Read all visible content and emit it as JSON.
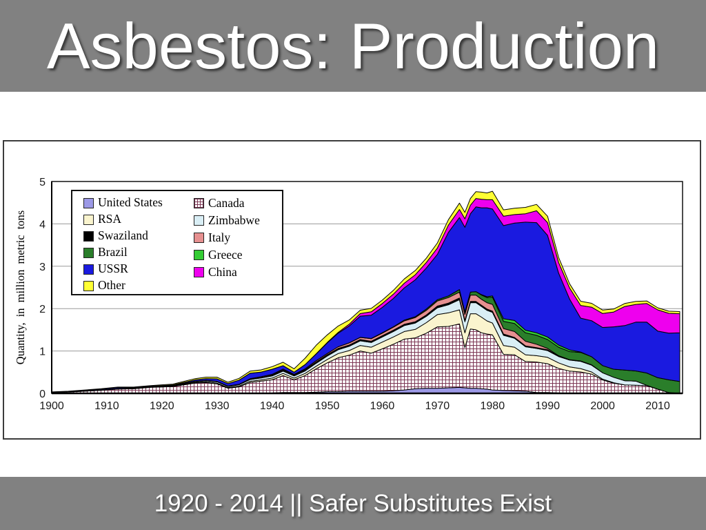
{
  "slide": {
    "title": "Asbestos: Production",
    "footer": "1920 - 2014 || Safer Substitutes Exist",
    "bar_color": "#818181",
    "title_text_color": "#ffffff"
  },
  "chart_data": {
    "type": "area",
    "stacked": true,
    "title": "",
    "xlabel": "",
    "ylabel": "Quantity, in million metric tons",
    "xlim": [
      1900,
      2014.5
    ],
    "ylim": [
      0,
      5
    ],
    "x_ticks": [
      1900,
      1910,
      1920,
      1930,
      1940,
      1950,
      1960,
      1970,
      1980,
      1990,
      2000,
      2010
    ],
    "y_ticks": [
      0,
      1,
      2,
      3,
      4,
      5
    ],
    "grid": true,
    "gridline_color": "#9a9a9a",
    "legend_position": "top-left",
    "legend_columns": [
      [
        "us",
        "rsa",
        "swaziland",
        "brazil",
        "ussr",
        "other"
      ],
      [
        "canada",
        "zimbabwe",
        "italy",
        "greece",
        "china"
      ]
    ],
    "years": [
      1900,
      1903,
      1906,
      1909,
      1912,
      1915,
      1918,
      1920,
      1922,
      1924,
      1926,
      1928,
      1930,
      1932,
      1934,
      1936,
      1938,
      1940,
      1942,
      1944,
      1946,
      1948,
      1950,
      1952,
      1954,
      1956,
      1958,
      1960,
      1962,
      1964,
      1966,
      1968,
      1970,
      1972,
      1974,
      1975,
      1976,
      1977,
      1978,
      1979,
      1980,
      1982,
      1984,
      1986,
      1988,
      1990,
      1992,
      1994,
      1996,
      1998,
      2000,
      2002,
      2004,
      2006,
      2008,
      2010,
      2012,
      2014
    ],
    "units": "million metric tons",
    "series": [
      {
        "key": "us",
        "label": "United States",
        "color": "#9C99E6",
        "values": [
          0.001,
          0.001,
          0.001,
          0.001,
          0.001,
          0.001,
          0.002,
          0.002,
          0.002,
          0.002,
          0.002,
          0.003,
          0.003,
          0.002,
          0.003,
          0.005,
          0.008,
          0.01,
          0.02,
          0.02,
          0.02,
          0.03,
          0.04,
          0.04,
          0.05,
          0.05,
          0.05,
          0.05,
          0.06,
          0.08,
          0.11,
          0.12,
          0.12,
          0.13,
          0.14,
          0.13,
          0.12,
          0.12,
          0.11,
          0.1,
          0.08,
          0.07,
          0.06,
          0.05,
          0.02,
          0.02,
          0.01,
          0.005,
          0.005,
          0.005,
          0.005,
          0,
          0,
          0,
          0,
          0,
          0,
          0
        ]
      },
      {
        "key": "canada",
        "label": "Canada",
        "color": "#FFFFFF",
        "pattern": "grid",
        "pattern_color": "#7B3553",
        "values": [
          0.02,
          0.03,
          0.05,
          0.07,
          0.1,
          0.11,
          0.14,
          0.15,
          0.16,
          0.2,
          0.24,
          0.25,
          0.22,
          0.12,
          0.15,
          0.25,
          0.28,
          0.31,
          0.4,
          0.3,
          0.4,
          0.55,
          0.68,
          0.8,
          0.85,
          0.95,
          0.9,
          1.0,
          1.1,
          1.2,
          1.2,
          1.3,
          1.45,
          1.45,
          1.5,
          0.95,
          1.4,
          1.38,
          1.32,
          1.3,
          1.3,
          0.85,
          0.85,
          0.7,
          0.72,
          0.68,
          0.58,
          0.52,
          0.5,
          0.45,
          0.31,
          0.24,
          0.2,
          0.19,
          0.18,
          0.1,
          0.02,
          0
        ]
      },
      {
        "key": "rsa",
        "label": "RSA",
        "color": "#FAF4CE",
        "values": [
          0.002,
          0.003,
          0.004,
          0.005,
          0.006,
          0.007,
          0.008,
          0.01,
          0.01,
          0.012,
          0.015,
          0.02,
          0.02,
          0.015,
          0.02,
          0.03,
          0.03,
          0.04,
          0.05,
          0.04,
          0.05,
          0.06,
          0.08,
          0.1,
          0.11,
          0.13,
          0.14,
          0.16,
          0.17,
          0.18,
          0.2,
          0.25,
          0.29,
          0.32,
          0.33,
          0.35,
          0.36,
          0.38,
          0.37,
          0.31,
          0.28,
          0.21,
          0.18,
          0.16,
          0.15,
          0.15,
          0.13,
          0.1,
          0.08,
          0.05,
          0.02,
          0.01,
          0,
          0,
          0,
          0,
          0,
          0
        ]
      },
      {
        "key": "zimbabwe",
        "label": "Zimbabwe",
        "color": "#D9EEF5",
        "values": [
          0.001,
          0.001,
          0.002,
          0.003,
          0.004,
          0.005,
          0.006,
          0.01,
          0.012,
          0.015,
          0.02,
          0.025,
          0.03,
          0.025,
          0.03,
          0.04,
          0.045,
          0.05,
          0.055,
          0.05,
          0.06,
          0.07,
          0.08,
          0.09,
          0.1,
          0.11,
          0.11,
          0.12,
          0.13,
          0.14,
          0.15,
          0.15,
          0.16,
          0.19,
          0.24,
          0.26,
          0.26,
          0.26,
          0.25,
          0.25,
          0.25,
          0.24,
          0.21,
          0.19,
          0.17,
          0.16,
          0.15,
          0.16,
          0.17,
          0.16,
          0.15,
          0.13,
          0.1,
          0.1,
          0.01,
          0,
          0,
          0
        ]
      },
      {
        "key": "swaziland",
        "label": "Swaziland",
        "color": "#000000",
        "values": [
          0,
          0,
          0,
          0,
          0,
          0,
          0,
          0,
          0,
          0,
          0,
          0,
          0,
          0,
          0,
          0.005,
          0.01,
          0.02,
          0.03,
          0.03,
          0.03,
          0.03,
          0.03,
          0.03,
          0.03,
          0.03,
          0.03,
          0.03,
          0.03,
          0.03,
          0.03,
          0.03,
          0.04,
          0.04,
          0.04,
          0.03,
          0.03,
          0.03,
          0.03,
          0.03,
          0.03,
          0.03,
          0.02,
          0.02,
          0.02,
          0.02,
          0.01,
          0.01,
          0.01,
          0.01,
          0,
          0,
          0,
          0,
          0,
          0,
          0,
          0
        ]
      },
      {
        "key": "italy",
        "label": "Italy",
        "color": "#E69090",
        "values": [
          0,
          0,
          0,
          0,
          0.001,
          0.001,
          0.002,
          0.005,
          0.005,
          0.01,
          0.01,
          0.01,
          0.01,
          0.01,
          0.01,
          0.015,
          0.02,
          0.02,
          0.02,
          0.01,
          0.02,
          0.03,
          0.03,
          0.04,
          0.05,
          0.05,
          0.06,
          0.06,
          0.07,
          0.08,
          0.1,
          0.11,
          0.12,
          0.13,
          0.14,
          0.14,
          0.15,
          0.15,
          0.14,
          0.15,
          0.16,
          0.13,
          0.14,
          0.11,
          0.08,
          0.03,
          0.01,
          0,
          0,
          0,
          0,
          0,
          0,
          0,
          0,
          0,
          0,
          0
        ]
      },
      {
        "key": "brazil",
        "label": "Brazil",
        "color": "#2A7E2A",
        "values": [
          0,
          0,
          0,
          0,
          0,
          0,
          0,
          0,
          0,
          0,
          0,
          0,
          0,
          0,
          0,
          0,
          0,
          0,
          0,
          0,
          0,
          0,
          0,
          0,
          0.002,
          0.003,
          0.005,
          0.01,
          0.01,
          0.02,
          0.02,
          0.03,
          0.03,
          0.04,
          0.06,
          0.06,
          0.07,
          0.08,
          0.1,
          0.12,
          0.17,
          0.17,
          0.19,
          0.2,
          0.21,
          0.21,
          0.2,
          0.19,
          0.2,
          0.19,
          0.17,
          0.19,
          0.25,
          0.24,
          0.29,
          0.27,
          0.3,
          0.28
        ]
      },
      {
        "key": "greece",
        "label": "Greece",
        "color": "#33CC33",
        "values": [
          0,
          0,
          0,
          0,
          0,
          0,
          0,
          0,
          0,
          0,
          0,
          0,
          0,
          0,
          0,
          0,
          0,
          0,
          0,
          0,
          0,
          0,
          0,
          0,
          0,
          0,
          0,
          0,
          0,
          0,
          0,
          0,
          0,
          0,
          0,
          0,
          0,
          0,
          0.01,
          0.02,
          0.03,
          0.06,
          0.07,
          0.06,
          0.06,
          0.06,
          0.05,
          0.04,
          0.01,
          0,
          0,
          0,
          0,
          0,
          0,
          0,
          0,
          0
        ]
      },
      {
        "key": "ussr",
        "label": "USSR",
        "color": "#1A1AE0",
        "values": [
          0.005,
          0.01,
          0.015,
          0.02,
          0.025,
          0.015,
          0.01,
          0.005,
          0.01,
          0.02,
          0.03,
          0.04,
          0.06,
          0.06,
          0.1,
          0.13,
          0.11,
          0.12,
          0.08,
          0.05,
          0.1,
          0.16,
          0.25,
          0.32,
          0.4,
          0.5,
          0.55,
          0.6,
          0.67,
          0.76,
          0.87,
          0.97,
          1.07,
          1.5,
          1.7,
          2.0,
          1.85,
          2.0,
          2.05,
          2.1,
          2.05,
          2.2,
          2.3,
          2.55,
          2.6,
          2.4,
          1.7,
          1.2,
          0.8,
          0.85,
          0.9,
          1.0,
          1.05,
          1.15,
          1.2,
          1.1,
          1.1,
          1.15
        ]
      },
      {
        "key": "china",
        "label": "China",
        "color": "#EE00EE",
        "values": [
          0,
          0,
          0,
          0,
          0,
          0,
          0,
          0,
          0,
          0,
          0,
          0,
          0,
          0,
          0,
          0,
          0,
          0,
          0,
          0,
          0,
          0.005,
          0.01,
          0.02,
          0.04,
          0.06,
          0.08,
          0.09,
          0.1,
          0.11,
          0.12,
          0.13,
          0.15,
          0.17,
          0.19,
          0.2,
          0.2,
          0.2,
          0.2,
          0.19,
          0.22,
          0.22,
          0.2,
          0.2,
          0.28,
          0.3,
          0.25,
          0.26,
          0.3,
          0.32,
          0.33,
          0.35,
          0.45,
          0.42,
          0.44,
          0.5,
          0.47,
          0.45
        ]
      },
      {
        "key": "other",
        "label": "Other",
        "color": "#FFFF33",
        "values": [
          0.005,
          0.006,
          0.008,
          0.01,
          0.012,
          0.012,
          0.015,
          0.02,
          0.02,
          0.025,
          0.03,
          0.035,
          0.04,
          0.03,
          0.04,
          0.05,
          0.05,
          0.06,
          0.08,
          0.08,
          0.15,
          0.2,
          0.18,
          0.15,
          0.1,
          0.08,
          0.08,
          0.08,
          0.09,
          0.1,
          0.1,
          0.1,
          0.12,
          0.13,
          0.15,
          0.15,
          0.16,
          0.16,
          0.17,
          0.16,
          0.2,
          0.15,
          0.15,
          0.15,
          0.15,
          0.15,
          0.12,
          0.1,
          0.1,
          0.09,
          0.08,
          0.07,
          0.07,
          0.07,
          0.06,
          0.05,
          0.05,
          0.05
        ]
      }
    ]
  }
}
